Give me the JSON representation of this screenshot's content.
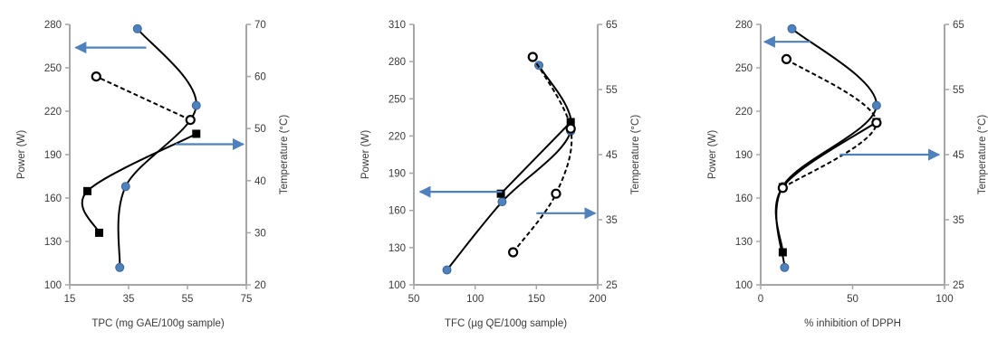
{
  "colors": {
    "axis": "#a6a6a6",
    "line": "#000000",
    "marker_filled": "#4f81bd",
    "arrow": "#4f81bd"
  },
  "chart_data": [
    {
      "type": "scatter",
      "xlabel": "TPC (mg GAE/100g sample)",
      "ylabel": "Power (W)",
      "y2label": "Temperature (°C)",
      "xlim": [
        15,
        75
      ],
      "ylim": [
        100,
        280
      ],
      "y2lim": [
        20,
        70
      ],
      "xticks": [
        "15",
        "35",
        "55",
        "75"
      ],
      "yticks": [
        "100",
        "130",
        "160",
        "190",
        "220",
        "250",
        "280"
      ],
      "y2ticks": [
        "20",
        "30",
        "40",
        "50",
        "60",
        "70"
      ],
      "series": [
        {
          "axis": "primary",
          "marker": "circle-filled",
          "line": "solid",
          "points": [
            [
              32,
              112
            ],
            [
              34,
              168
            ],
            [
              58,
              224
            ],
            [
              38,
              277
            ]
          ]
        },
        {
          "axis": "secondary",
          "marker": "square-filled",
          "line": "solid",
          "points": [
            [
              25,
              30
            ],
            [
              21,
              38
            ],
            [
              58,
              49
            ]
          ]
        },
        {
          "axis": "primary",
          "marker": "circle-open",
          "line": "dashed",
          "points": [
            [
              56,
              214
            ],
            [
              24,
              244
            ]
          ]
        }
      ],
      "arrows": [
        {
          "from": [
            41,
            264
          ],
          "to": [
            17,
            264
          ],
          "axis": "primary"
        },
        {
          "from": [
            51,
            47
          ],
          "to": [
            74,
            47
          ],
          "axis": "secondary"
        }
      ]
    },
    {
      "type": "scatter",
      "xlabel": "TFC (µg QE/100g sample)",
      "ylabel": "Power (W)",
      "y2label": "Temperature (°C)",
      "xlim": [
        50,
        200
      ],
      "ylim": [
        100,
        310
      ],
      "y2lim": [
        25,
        65
      ],
      "xticks": [
        "50",
        "100",
        "150",
        "200"
      ],
      "yticks": [
        "100",
        "130",
        "160",
        "190",
        "220",
        "250",
        "280",
        "310"
      ],
      "y2ticks": [
        "25",
        "35",
        "45",
        "55",
        "65"
      ],
      "series": [
        {
          "axis": "primary",
          "marker": "circle-filled",
          "line": "solid",
          "points": [
            [
              77,
              112
            ],
            [
              122,
              167
            ],
            [
              178,
              224
            ],
            [
              152,
              277
            ]
          ]
        },
        {
          "axis": "secondary",
          "marker": "square-filled",
          "line": "solid",
          "points": [
            [
              121,
              39
            ],
            [
              178,
              50
            ]
          ]
        },
        {
          "axis": "secondary",
          "marker": "circle-open",
          "line": "dashed",
          "points": [
            [
              131,
              30
            ],
            [
              166,
              39
            ],
            [
              178,
              49
            ],
            [
              147,
              60
            ]
          ]
        }
      ],
      "arrows": [
        {
          "from": [
            122,
            175
          ],
          "to": [
            55,
            175
          ],
          "axis": "primary"
        },
        {
          "from": [
            150,
            36
          ],
          "to": [
            198,
            36
          ],
          "axis": "secondary"
        }
      ]
    },
    {
      "type": "scatter",
      "xlabel": "% inhibition of DPPH",
      "ylabel": "Power (W)",
      "y2label": "Temperature (°C)",
      "xlim": [
        0,
        100
      ],
      "ylim": [
        100,
        280
      ],
      "y2lim": [
        25,
        65
      ],
      "xticks": [
        "0",
        "50",
        "100"
      ],
      "yticks": [
        "100",
        "130",
        "160",
        "190",
        "220",
        "250",
        "280"
      ],
      "y2ticks": [
        "25",
        "35",
        "45",
        "55",
        "65"
      ],
      "series": [
        {
          "axis": "primary",
          "marker": "circle-filled",
          "line": "solid",
          "points": [
            [
              13,
              112
            ],
            [
              12,
              168
            ],
            [
              63,
              224
            ],
            [
              17,
              277
            ]
          ]
        },
        {
          "axis": "secondary",
          "marker": "square-filled",
          "line": "solid",
          "points": [
            [
              12,
              30
            ],
            [
              12,
              40
            ],
            [
              63,
              50
            ]
          ]
        },
        {
          "axis": "primary",
          "marker": "circle-open",
          "line": "dashed",
          "points": [
            [
              12,
              167
            ],
            [
              63,
              212
            ],
            [
              14,
              256
            ]
          ]
        }
      ],
      "arrows": [
        {
          "from": [
            27,
            268
          ],
          "to": [
            2,
            268
          ],
          "axis": "primary"
        },
        {
          "from": [
            43,
            45
          ],
          "to": [
            97,
            45
          ],
          "axis": "secondary"
        }
      ]
    }
  ]
}
